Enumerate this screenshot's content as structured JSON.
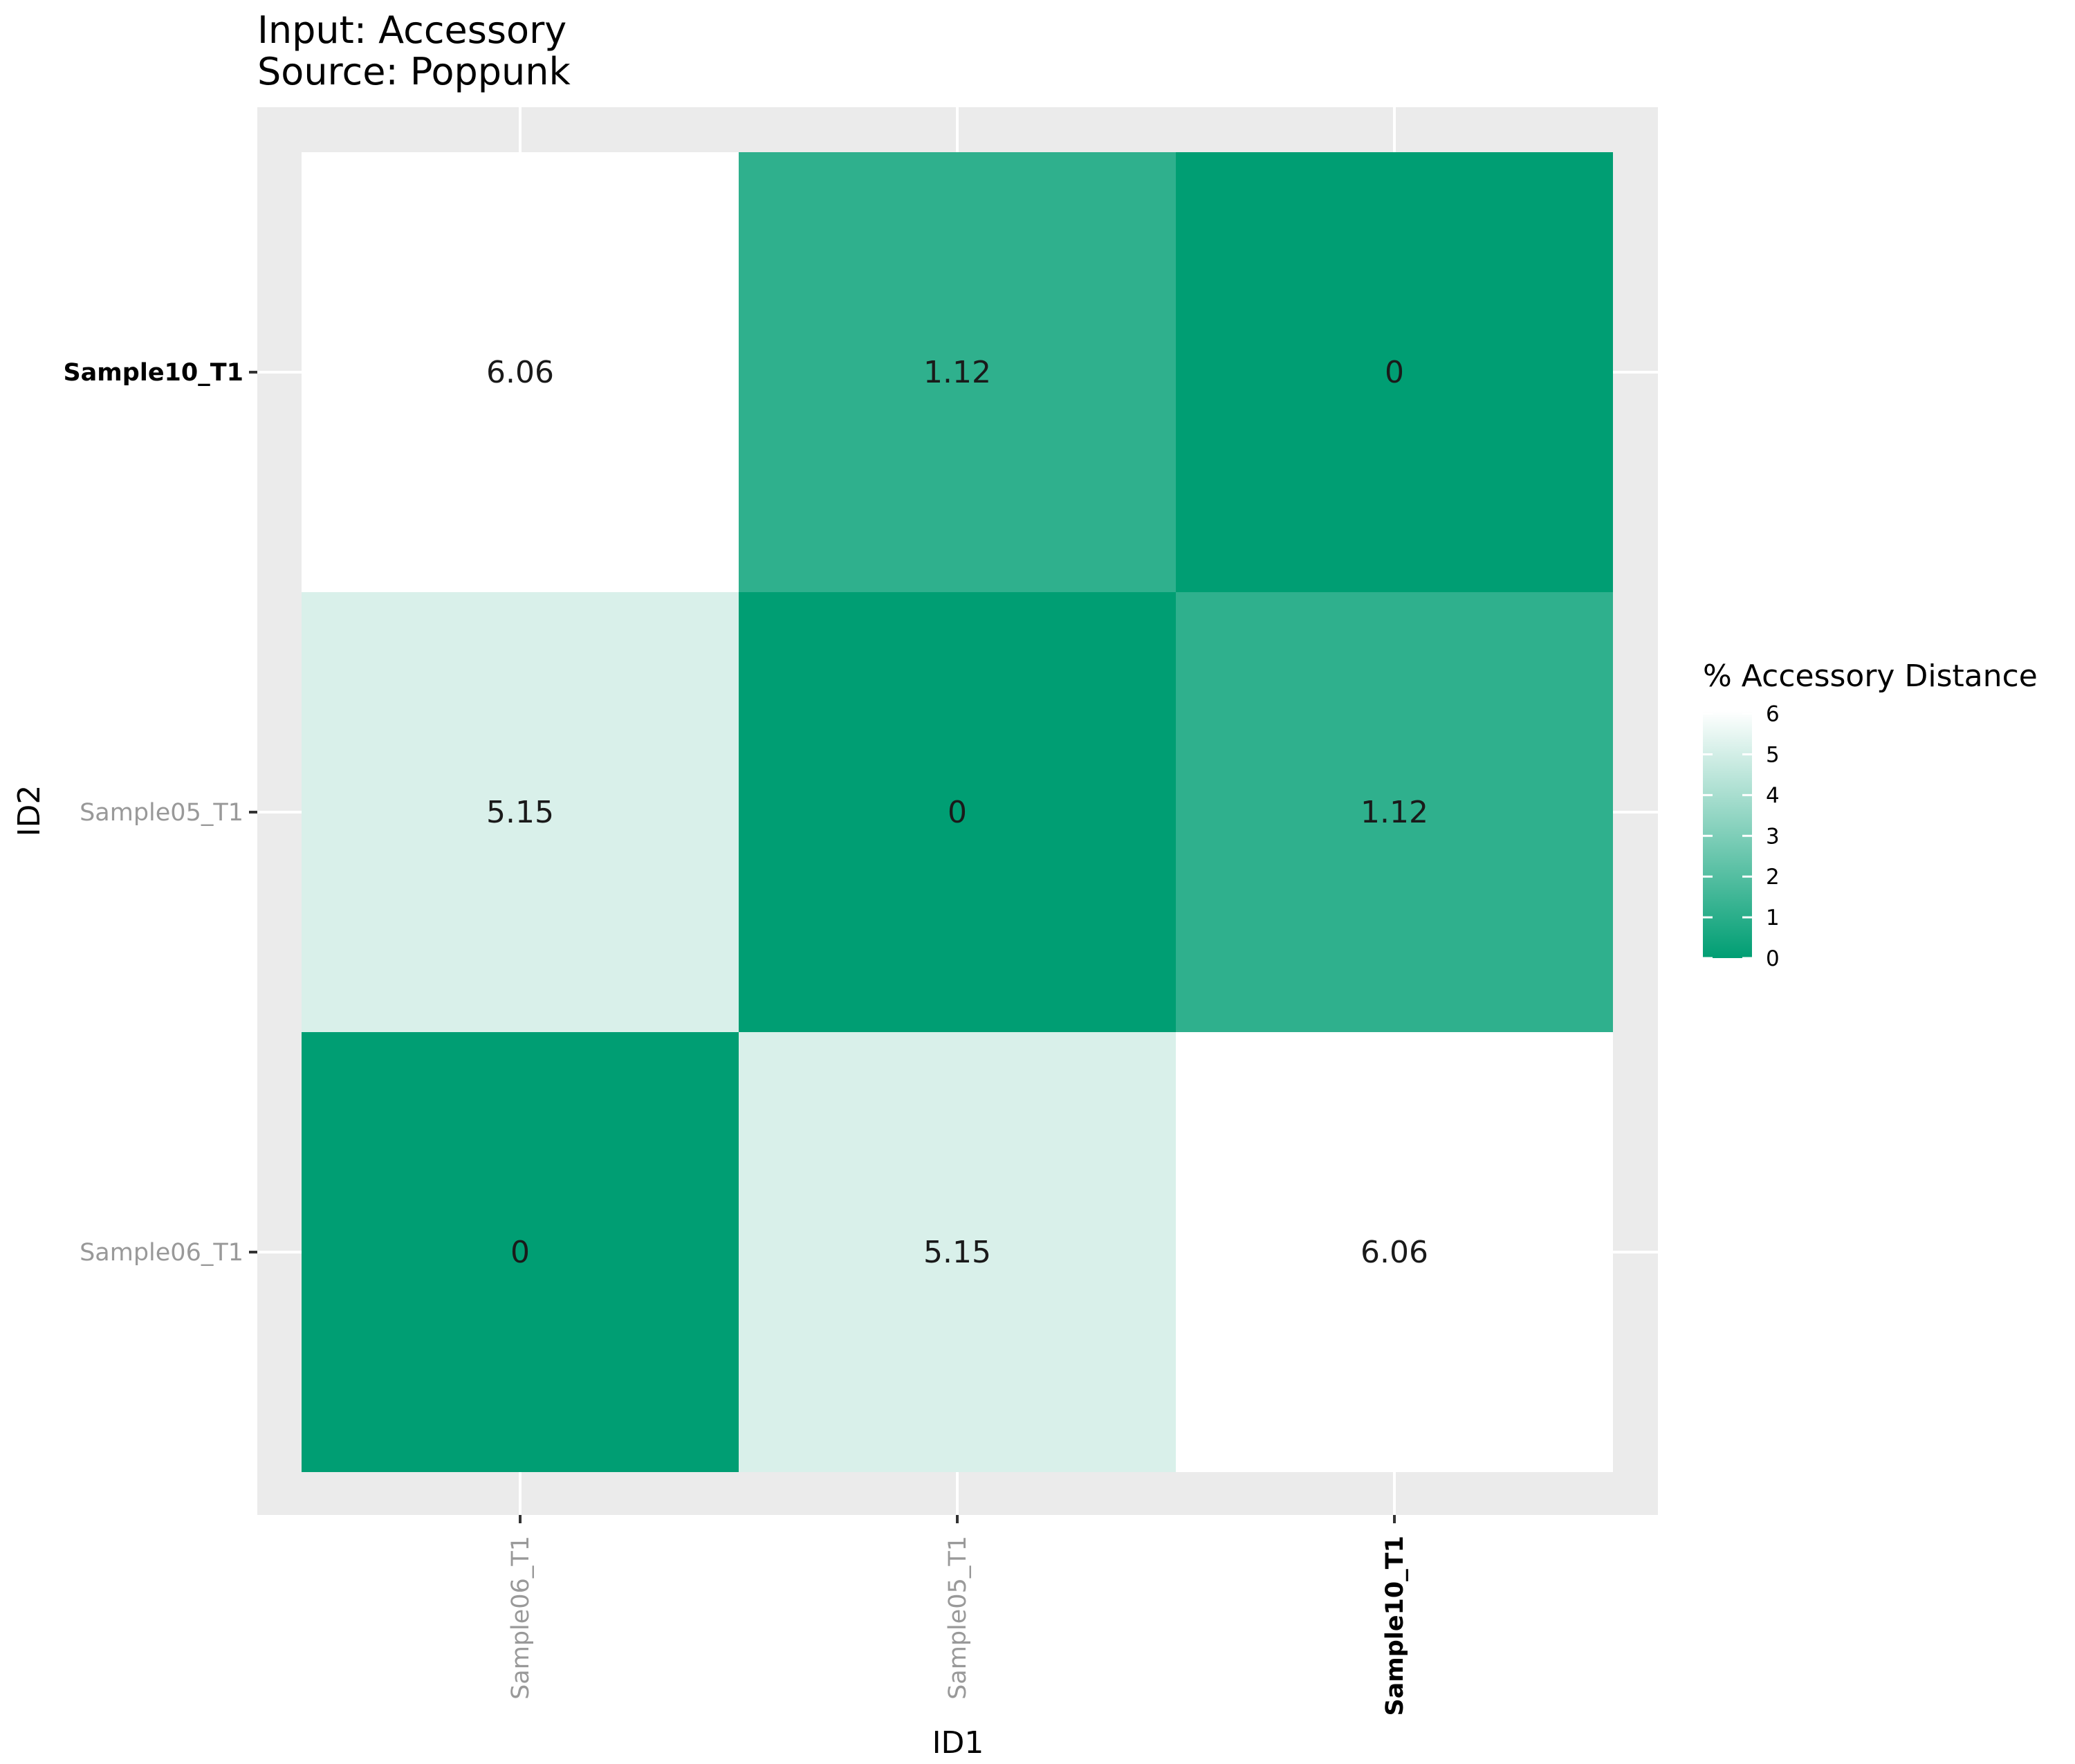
{
  "chart_data": {
    "type": "heatmap",
    "title_lines": [
      "Input: Accessory",
      "Source: Poppunk"
    ],
    "xlabel": "ID1",
    "ylabel": "ID2",
    "x_categories": [
      {
        "label": "Sample06_T1",
        "bold": false
      },
      {
        "label": "Sample05_T1",
        "bold": false
      },
      {
        "label": "Sample10_T1",
        "bold": true
      }
    ],
    "y_categories": [
      {
        "label": "Sample06_T1",
        "bold": false
      },
      {
        "label": "Sample05_T1",
        "bold": false
      },
      {
        "label": "Sample10_T1",
        "bold": true
      }
    ],
    "cells": [
      {
        "x": "Sample06_T1",
        "y": "Sample06_T1",
        "value": 0,
        "label": "0"
      },
      {
        "x": "Sample05_T1",
        "y": "Sample06_T1",
        "value": 5.15,
        "label": "5.15"
      },
      {
        "x": "Sample10_T1",
        "y": "Sample06_T1",
        "value": 6.06,
        "label": "6.06"
      },
      {
        "x": "Sample06_T1",
        "y": "Sample05_T1",
        "value": 5.15,
        "label": "5.15"
      },
      {
        "x": "Sample05_T1",
        "y": "Sample05_T1",
        "value": 0,
        "label": "0"
      },
      {
        "x": "Sample10_T1",
        "y": "Sample05_T1",
        "value": 1.12,
        "label": "1.12"
      },
      {
        "x": "Sample06_T1",
        "y": "Sample10_T1",
        "value": 6.06,
        "label": "6.06"
      },
      {
        "x": "Sample05_T1",
        "y": "Sample10_T1",
        "value": 1.12,
        "label": "1.12"
      },
      {
        "x": "Sample10_T1",
        "y": "Sample10_T1",
        "value": 0,
        "label": "0"
      }
    ],
    "legend": {
      "title": "% Accessory Distance",
      "position": "right",
      "ticks": [
        "0",
        "1",
        "2",
        "3",
        "4",
        "5",
        "6"
      ],
      "range": [
        0,
        6.06
      ]
    },
    "colors": {
      "low": "#009e73",
      "high": "#ffffff",
      "panel_background": "#ebebeb",
      "gridline": "#ffffff",
      "non_bold_label": "#999999",
      "bold_label": "#000000"
    }
  }
}
